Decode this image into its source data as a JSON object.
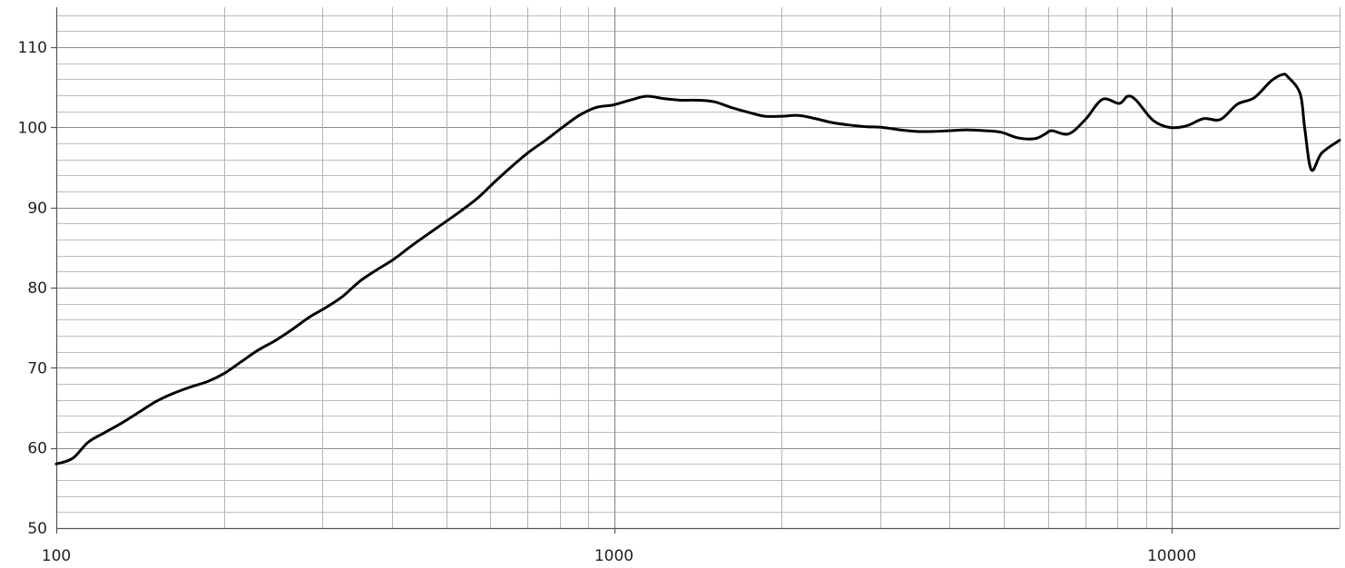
{
  "chart_data": {
    "type": "line",
    "title": "",
    "xlabel": "",
    "ylabel": "",
    "x_scale": "log",
    "xlim": [
      100,
      20000
    ],
    "ylim": [
      50,
      115
    ],
    "grid": true,
    "x_ticks": [
      100,
      1000,
      10000
    ],
    "x_tick_labels": [
      "100",
      "1000",
      "10000"
    ],
    "y_ticks": [
      50,
      60,
      70,
      80,
      90,
      100,
      110
    ],
    "y_tick_labels": [
      "50",
      "60",
      "70",
      "80",
      "90",
      "100",
      "110"
    ],
    "series": [
      {
        "x": [
          100,
          107,
          114,
          122,
          131,
          141,
          151,
          162,
          174,
          187,
          200,
          215,
          230,
          247,
          265,
          284,
          304,
          326,
          350,
          375,
          402,
          431,
          462,
          496,
          532,
          570,
          611,
          655,
          703,
          754,
          808,
          866,
          929,
          996,
          1068,
          1145,
          1227,
          1316,
          1411,
          1513,
          1622,
          1739,
          1864,
          1999,
          2143,
          2298,
          2463,
          2641,
          2832,
          3036,
          3255,
          3490,
          3742,
          4012,
          4301,
          4612,
          4944,
          5301,
          5684,
          5940,
          6094,
          6534,
          7005,
          7511,
          8053,
          8340,
          8634,
          9257,
          9925,
          10641,
          11409,
          12232,
          13114,
          14061,
          15075,
          15800,
          16162,
          17000,
          17328,
          17800,
          18578,
          20000
        ],
        "y": [
          58,
          58.7,
          60.7,
          61.9,
          63.1,
          64.5,
          65.8,
          66.8,
          67.6,
          68.3,
          69.3,
          70.8,
          72.2,
          73.4,
          74.8,
          76.3,
          77.5,
          78.9,
          80.8,
          82.2,
          83.5,
          85.1,
          86.6,
          88.1,
          89.6,
          91.2,
          93.2,
          95.1,
          96.9,
          98.4,
          100.0,
          101.5,
          102.5,
          102.8,
          103.4,
          103.9,
          103.6,
          103.4,
          103.4,
          103.2,
          102.5,
          101.9,
          101.4,
          101.4,
          101.5,
          101.1,
          100.6,
          100.3,
          100.1,
          100.0,
          99.7,
          99.5,
          99.5,
          99.6,
          99.7,
          99.6,
          99.4,
          98.7,
          98.6,
          99.2,
          99.6,
          99.2,
          101.0,
          103.5,
          103.0,
          103.9,
          103.4,
          100.9,
          100.0,
          100.2,
          101.1,
          101.0,
          102.9,
          103.7,
          105.8,
          106.6,
          106.3,
          104.2,
          99.8,
          94.7,
          96.8,
          98.4
        ]
      }
    ]
  }
}
